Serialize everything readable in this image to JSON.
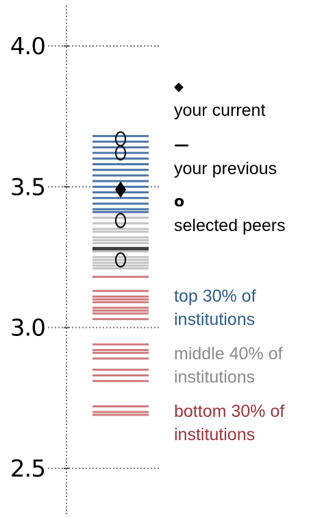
{
  "chart_data": {
    "type": "strip",
    "y_ticks": [
      "4.0",
      "3.5",
      "3.0",
      "2.5"
    ],
    "ylim": [
      2.5,
      4.0
    ],
    "grid": "dotted",
    "colors": {
      "top": "#4a74a6",
      "middle": "#c3c3c3",
      "bottom": "#cf7b7b",
      "previous": "#404040",
      "current": "#000000"
    },
    "top_30": [
      3.68,
      3.66,
      3.64,
      3.62,
      3.6,
      3.58,
      3.56,
      3.54,
      3.52,
      3.5,
      3.48,
      3.46,
      3.44,
      3.42,
      3.41
    ],
    "middle_40": [
      3.39,
      3.37,
      3.35,
      3.34,
      3.32,
      3.31,
      3.3,
      3.27,
      3.25,
      3.24,
      3.23,
      3.22,
      3.21
    ],
    "bottom_30": [
      3.18,
      3.13,
      3.11,
      3.1,
      3.09,
      3.07,
      3.06,
      3.05,
      3.03,
      2.94,
      2.92,
      2.91,
      2.89,
      2.85,
      2.83,
      2.81,
      2.72,
      2.7,
      2.69
    ],
    "your_current": 3.49,
    "your_previous": 3.28,
    "selected_peers": [
      3.67,
      3.62,
      3.38,
      3.24
    ]
  },
  "legend": {
    "current_symbol": "◆",
    "current_label": "your current",
    "previous_symbol": "—",
    "previous_label": "your previous",
    "peers_symbol": "o",
    "peers_label": "selected peers"
  },
  "tiers": {
    "top_line1": "top 30% of",
    "top_line2": "institutions",
    "top_color": "#2e5c8a",
    "middle_line1": "middle 40% of",
    "middle_line2": "institutions",
    "middle_color": "#8a8a8a",
    "bottom_line1": "bottom 30% of",
    "bottom_line2": "institutions",
    "bottom_color": "#a0323a"
  }
}
